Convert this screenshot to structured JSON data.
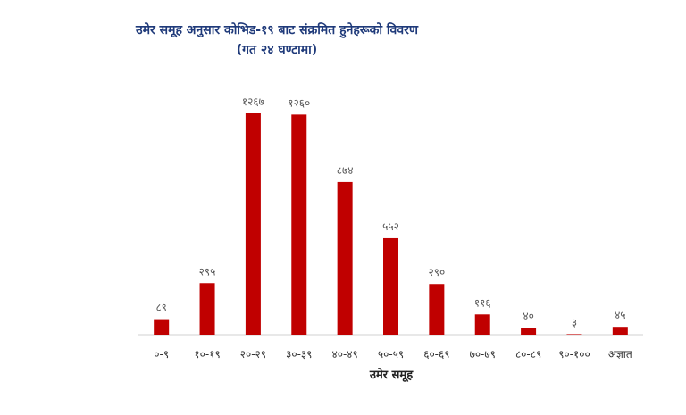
{
  "chart_data": {
    "type": "bar",
    "title": "उमेर समूह अनुसार कोभिड-१९ बाट संक्रमित हुनेहरूको विवरण",
    "subtitle": "(गत २४ घण्टामा)",
    "xlabel": "उमेर समूह",
    "ylabel": "",
    "categories": [
      "०-९",
      "१०-१९",
      "२०-२९",
      "३०-३९",
      "४०-४९",
      "५०-५९",
      "६०-६९",
      "७०-७९",
      "८०-८९",
      "९०-१००",
      "अज्ञात"
    ],
    "values": [
      89,
      295,
      1267,
      1260,
      874,
      552,
      290,
      116,
      40,
      3,
      45
    ],
    "data_labels": [
      "८९",
      "२९५",
      "१२६७",
      "१२६०",
      "८७४",
      "५५२",
      "२९०",
      "११६",
      "४०",
      "३",
      "४५"
    ],
    "ylim": [
      0,
      1267
    ],
    "grid": false,
    "legend": "none",
    "bar_color": "#c00000"
  }
}
